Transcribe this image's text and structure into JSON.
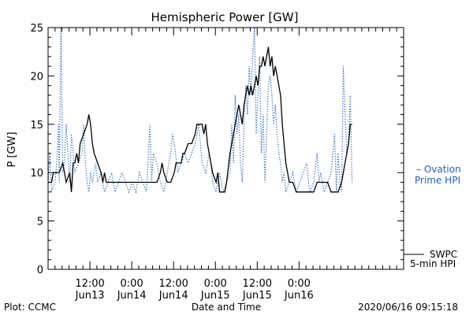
{
  "chart_data": {
    "type": "line",
    "title": "Hemispheric Power [GW]",
    "xlabel": "Date and Time",
    "ylabel": "P [GW]",
    "ylim": [
      0,
      25
    ],
    "yticks": [
      0,
      5,
      10,
      15,
      20,
      25
    ],
    "ytick_labels": [
      "0",
      "5",
      "10",
      "15",
      "20",
      "25"
    ],
    "xlim": [
      0,
      102
    ],
    "x_unit": "hours since 2020-06-13 00:00 UT",
    "xticks": [
      {
        "x": 12,
        "time": "12:00",
        "date": "Jun13"
      },
      {
        "x": 24,
        "time": "0:00",
        "date": "Jun14"
      },
      {
        "x": 36,
        "time": "12:00",
        "date": "Jun14"
      },
      {
        "x": 48,
        "time": "0:00",
        "date": "Jun15"
      },
      {
        "x": 60,
        "time": "12:00",
        "date": "Jun15"
      },
      {
        "x": 72,
        "time": "0:00",
        "date": "Jun16"
      }
    ],
    "grid": false,
    "series": [
      {
        "name": "SWPC 5-min HPI",
        "color": "#000000",
        "style": "solid",
        "points": [
          [
            0,
            9
          ],
          [
            1,
            9
          ],
          [
            1.5,
            10
          ],
          [
            2.5,
            10
          ],
          [
            3.2,
            10
          ],
          [
            4.2,
            11
          ],
          [
            5.2,
            9
          ],
          [
            6.2,
            10
          ],
          [
            6.7,
            8
          ],
          [
            7.2,
            11
          ],
          [
            7.7,
            11
          ],
          [
            8.2,
            12
          ],
          [
            8.7,
            11
          ],
          [
            9.2,
            13
          ],
          [
            10.2,
            14
          ],
          [
            11.2,
            15
          ],
          [
            11.7,
            16
          ],
          [
            12.2,
            15
          ],
          [
            12.7,
            13
          ],
          [
            13.2,
            12
          ],
          [
            14.2,
            11
          ],
          [
            15.2,
            10
          ],
          [
            15.7,
            9
          ],
          [
            16.2,
            10
          ],
          [
            16.7,
            9
          ],
          [
            17.2,
            9
          ],
          [
            18.2,
            9
          ],
          [
            20.2,
            9
          ],
          [
            24.2,
            9
          ],
          [
            28.2,
            9
          ],
          [
            31.2,
            9
          ],
          [
            32.2,
            10
          ],
          [
            32.7,
            11
          ],
          [
            33.2,
            10
          ],
          [
            34.2,
            9
          ],
          [
            35.2,
            9
          ],
          [
            36.2,
            10
          ],
          [
            36.7,
            11
          ],
          [
            37.2,
            11
          ],
          [
            38.2,
            11
          ],
          [
            38.7,
            12
          ],
          [
            39.2,
            12
          ],
          [
            40.2,
            13
          ],
          [
            41.2,
            13
          ],
          [
            42.2,
            14
          ],
          [
            42.7,
            15
          ],
          [
            43.2,
            15
          ],
          [
            44.2,
            15
          ],
          [
            44.7,
            14
          ],
          [
            45.2,
            15
          ],
          [
            45.7,
            13
          ],
          [
            46.2,
            12
          ],
          [
            46.7,
            11
          ],
          [
            47.2,
            10
          ],
          [
            48.2,
            9
          ],
          [
            48.7,
            10
          ],
          [
            49.2,
            8
          ],
          [
            50.2,
            8
          ],
          [
            50.7,
            8
          ],
          [
            51.2,
            9
          ],
          [
            52.2,
            12
          ],
          [
            52.7,
            13
          ],
          [
            53.2,
            14
          ],
          [
            53.7,
            15
          ],
          [
            54.2,
            16
          ],
          [
            54.7,
            17
          ],
          [
            55.2,
            16
          ],
          [
            55.7,
            15
          ],
          [
            56.2,
            17
          ],
          [
            56.7,
            18
          ],
          [
            57.2,
            19
          ],
          [
            57.7,
            18
          ],
          [
            58.2,
            19
          ],
          [
            58.7,
            18
          ],
          [
            59.2,
            19
          ],
          [
            59.7,
            20
          ],
          [
            60.2,
            19
          ],
          [
            60.7,
            21
          ],
          [
            61.2,
            21
          ],
          [
            61.7,
            22
          ],
          [
            62.2,
            21
          ],
          [
            62.7,
            22
          ],
          [
            63.2,
            23
          ],
          [
            63.7,
            21
          ],
          [
            64.2,
            22
          ],
          [
            64.7,
            20
          ],
          [
            65.2,
            21
          ],
          [
            65.7,
            20
          ],
          [
            66.2,
            19
          ],
          [
            66.7,
            18
          ],
          [
            67.2,
            15
          ],
          [
            67.7,
            13
          ],
          [
            68.2,
            11
          ],
          [
            68.7,
            10
          ],
          [
            69.2,
            9
          ],
          [
            70.2,
            9
          ],
          [
            71.2,
            8
          ],
          [
            72.2,
            8
          ],
          [
            74.2,
            8
          ],
          [
            76.2,
            8
          ],
          [
            77.2,
            9
          ],
          [
            79.2,
            9
          ],
          [
            80.2,
            9
          ],
          [
            81.2,
            8
          ],
          [
            83.2,
            8
          ],
          [
            84.2,
            9
          ],
          [
            85.2,
            11
          ],
          [
            85.7,
            12
          ],
          [
            86.2,
            13
          ],
          [
            86.7,
            15
          ],
          [
            87.2,
            15
          ]
        ]
      },
      {
        "name": "Ovation Prime HPI",
        "color": "#1f5fbf",
        "style": "dotted",
        "points": [
          [
            0,
            9
          ],
          [
            0.5,
            12
          ],
          [
            1,
            8
          ],
          [
            2,
            9
          ],
          [
            2.5,
            11
          ],
          [
            3,
            15
          ],
          [
            3.2,
            9
          ],
          [
            3.7,
            25
          ],
          [
            4.2,
            10
          ],
          [
            4.7,
            11
          ],
          [
            5.2,
            15
          ],
          [
            5.7,
            12
          ],
          [
            6.2,
            9
          ],
          [
            6.7,
            14
          ],
          [
            7.2,
            12
          ],
          [
            7.7,
            10
          ],
          [
            8.7,
            11
          ],
          [
            9.7,
            12
          ],
          [
            10.2,
            15
          ],
          [
            10.7,
            11
          ],
          [
            11.2,
            9
          ],
          [
            11.7,
            8
          ],
          [
            12.2,
            10
          ],
          [
            12.7,
            9
          ],
          [
            13.7,
            11
          ],
          [
            14.2,
            9
          ],
          [
            15.2,
            10
          ],
          [
            16.2,
            8
          ],
          [
            17.2,
            9
          ],
          [
            18.2,
            10
          ],
          [
            19.2,
            8
          ],
          [
            20.2,
            9
          ],
          [
            21.2,
            10
          ],
          [
            22.2,
            9
          ],
          [
            23.2,
            8
          ],
          [
            24.2,
            9
          ],
          [
            25.2,
            8
          ],
          [
            26.2,
            10
          ],
          [
            27.2,
            9
          ],
          [
            28.2,
            8
          ],
          [
            29.2,
            15
          ],
          [
            29.7,
            9
          ],
          [
            30.2,
            12
          ],
          [
            31.2,
            11
          ],
          [
            32.2,
            9
          ],
          [
            33.2,
            8
          ],
          [
            34.2,
            10
          ],
          [
            35.2,
            12
          ],
          [
            35.7,
            14
          ],
          [
            36.2,
            13
          ],
          [
            37.2,
            10
          ],
          [
            38.2,
            11
          ],
          [
            39.2,
            12
          ],
          [
            40.2,
            11
          ],
          [
            41.2,
            12
          ],
          [
            42.2,
            13
          ],
          [
            43.2,
            15
          ],
          [
            43.7,
            13
          ],
          [
            44.2,
            11
          ],
          [
            45.2,
            10
          ],
          [
            46.2,
            12
          ],
          [
            46.7,
            11
          ],
          [
            47.2,
            9
          ],
          [
            48.2,
            8
          ],
          [
            49.2,
            10
          ],
          [
            50.2,
            8
          ],
          [
            51.2,
            9
          ],
          [
            52.2,
            10
          ],
          [
            52.7,
            15
          ],
          [
            53.2,
            11
          ],
          [
            53.7,
            18
          ],
          [
            54.2,
            14
          ],
          [
            54.7,
            16
          ],
          [
            55.2,
            11
          ],
          [
            55.7,
            9
          ],
          [
            56.2,
            15
          ],
          [
            56.7,
            19
          ],
          [
            57.2,
            16
          ],
          [
            57.7,
            21
          ],
          [
            58.2,
            18
          ],
          [
            58.7,
            22
          ],
          [
            59.2,
            25
          ],
          [
            59.7,
            14
          ],
          [
            60.2,
            18
          ],
          [
            60.7,
            22
          ],
          [
            61.2,
            12
          ],
          [
            61.7,
            16
          ],
          [
            62.2,
            9
          ],
          [
            62.7,
            14
          ],
          [
            63.2,
            19
          ],
          [
            63.7,
            20
          ],
          [
            64.2,
            18
          ],
          [
            64.7,
            15
          ],
          [
            65.2,
            17
          ],
          [
            65.7,
            14
          ],
          [
            66.2,
            12
          ],
          [
            66.7,
            11
          ],
          [
            67.2,
            9
          ],
          [
            67.7,
            10
          ],
          [
            68.2,
            8
          ],
          [
            69.2,
            9
          ],
          [
            70.2,
            10
          ],
          [
            71.2,
            8
          ],
          [
            72.2,
            9
          ],
          [
            73.2,
            10
          ],
          [
            74.2,
            11
          ],
          [
            74.7,
            9
          ],
          [
            75.2,
            8
          ],
          [
            76.2,
            9
          ],
          [
            77.2,
            12
          ],
          [
            77.7,
            9
          ],
          [
            78.2,
            10
          ],
          [
            79.2,
            8
          ],
          [
            80.2,
            9
          ],
          [
            81.2,
            10
          ],
          [
            82.2,
            14
          ],
          [
            82.7,
            8
          ],
          [
            83.2,
            12
          ],
          [
            83.7,
            9
          ],
          [
            84.2,
            8
          ],
          [
            84.7,
            21
          ],
          [
            85.2,
            16
          ],
          [
            85.7,
            12
          ],
          [
            86.2,
            13
          ],
          [
            86.7,
            18
          ],
          [
            87.2,
            9
          ]
        ]
      }
    ]
  },
  "legend": {
    "ovation_line1": "– Ovation",
    "ovation_line2": "Prime HPI",
    "swpc_line1": "SWPC",
    "swpc_line2": "5-min HPI"
  },
  "footer": {
    "source": "Plot: CCMC",
    "timestamp": "2020/06/16 09:15:18"
  }
}
